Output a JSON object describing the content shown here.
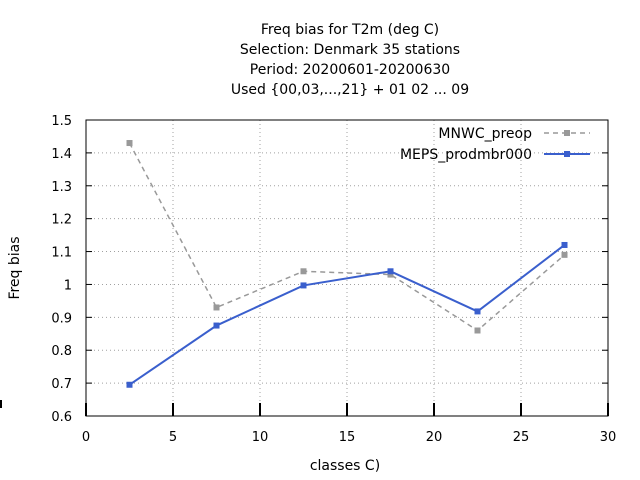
{
  "chart_data": {
    "type": "line",
    "title_lines": [
      "Freq bias  for T2m (deg C)",
      "Selection: Denmark     35 stations",
      "Period: 20200601-20200630",
      "Used {00,03,...,21} + 01 02 ... 09"
    ],
    "xlabel": "classes C)",
    "ylabel": "Freq bias",
    "xlim": [
      0,
      30
    ],
    "ylim": [
      0.6,
      1.5
    ],
    "xticks": [
      0,
      5,
      10,
      15,
      20,
      25,
      30
    ],
    "yticks": [
      0.6,
      0.7,
      0.8,
      0.9,
      1,
      1.1,
      1.2,
      1.3,
      1.4,
      1.5
    ],
    "grid": true,
    "legend_position": "top-right",
    "series": [
      {
        "name": "MNWC_preop",
        "color": "#999999",
        "style": "dashed",
        "x": [
          2.5,
          7.5,
          12.5,
          17.5,
          22.5,
          27.5
        ],
        "y": [
          1.43,
          0.93,
          1.04,
          1.03,
          0.86,
          1.09
        ]
      },
      {
        "name": "MEPS_prodmbr000",
        "color": "#3a5fcd",
        "style": "solid",
        "x": [
          2.5,
          7.5,
          12.5,
          17.5,
          22.5,
          27.5
        ],
        "y": [
          0.695,
          0.875,
          0.997,
          1.04,
          0.918,
          1.12
        ]
      }
    ]
  }
}
